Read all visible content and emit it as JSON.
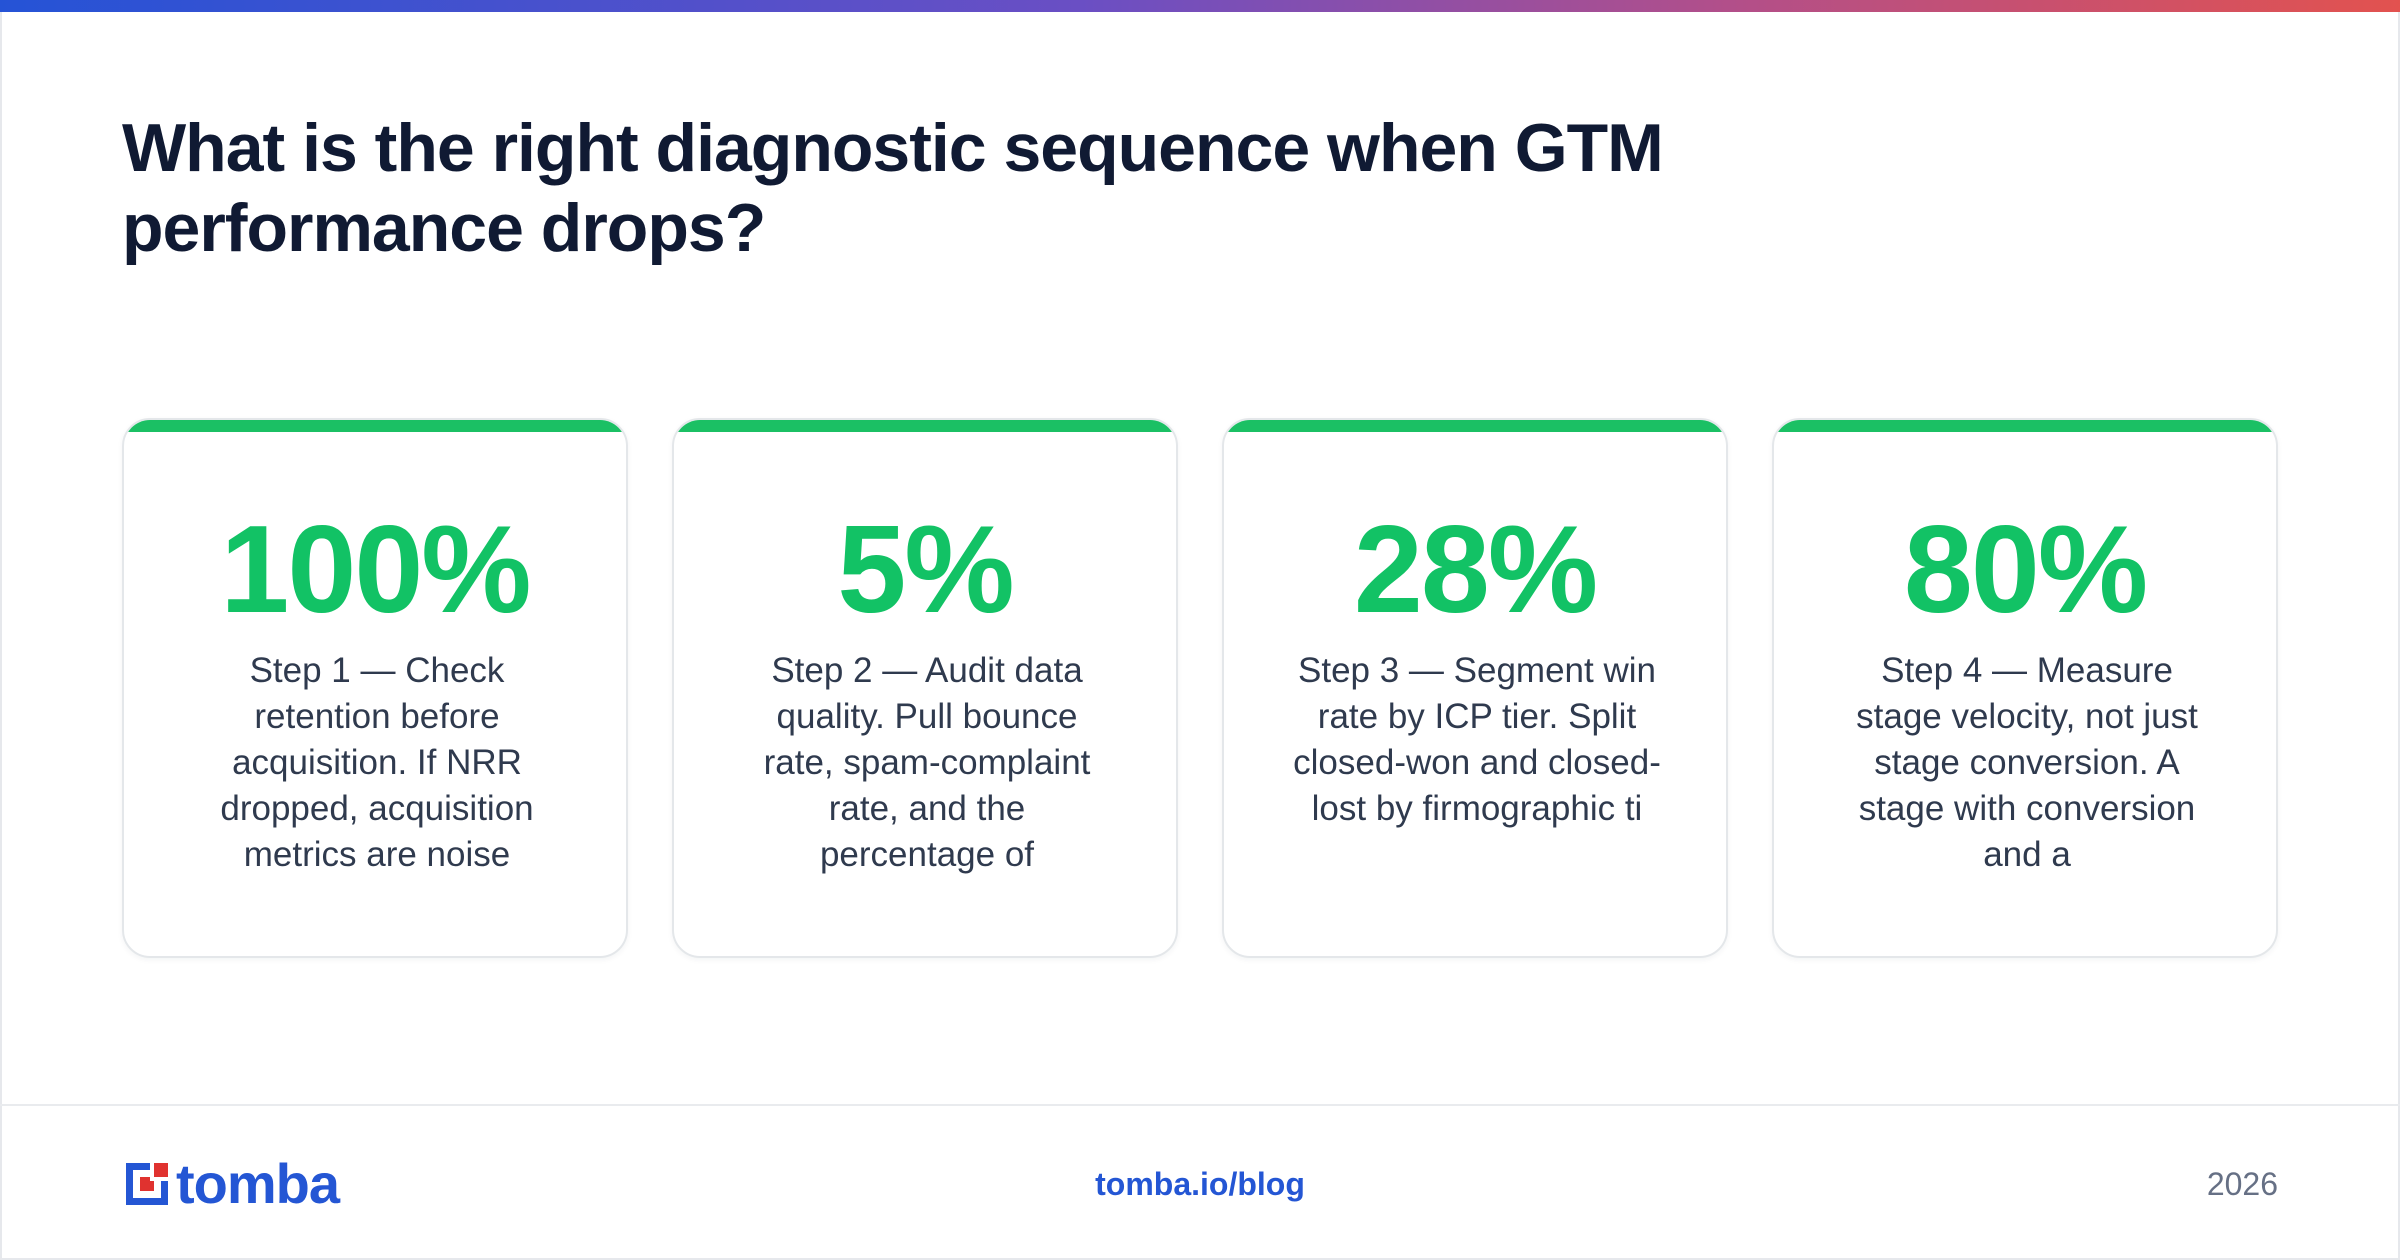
{
  "title": "What is the right diagnostic sequence when GTM performance drops?",
  "colors": {
    "accent_green": "#12c265",
    "brand_blue": "#2456d4",
    "logo_red": "#e0322f"
  },
  "cards": [
    {
      "stat": "100%",
      "text": "Step 1 — Check retention before acquisition. If NRR dropped, acquisition metrics are noise"
    },
    {
      "stat": "5%",
      "text": "Step 2 — Audit data quality. Pull bounce rate, spam-complaint rate, and the percentage of"
    },
    {
      "stat": "28%",
      "text": "Step 3 — Segment win rate by ICP tier. Split closed-won and closed-lost by firmographic ti"
    },
    {
      "stat": "80%",
      "text": "Step 4 — Measure stage velocity, not just stage conversion. A stage with conversion and a"
    }
  ],
  "footer": {
    "logo_icon": "tomba-logo-icon",
    "logo_text": "tomba",
    "link": "tomba.io/blog",
    "year": "2026"
  }
}
